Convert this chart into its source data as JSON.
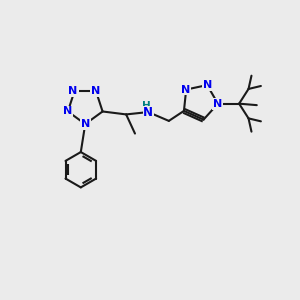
{
  "bg_color": "#ebebeb",
  "bond_color": "#1a1a1a",
  "n_color": "#0000ee",
  "h_color": "#008080",
  "lw": 1.5,
  "fig_size": [
    3.0,
    3.0
  ],
  "dpi": 100,
  "xlim": [
    0,
    10
  ],
  "ylim": [
    0,
    10
  ]
}
